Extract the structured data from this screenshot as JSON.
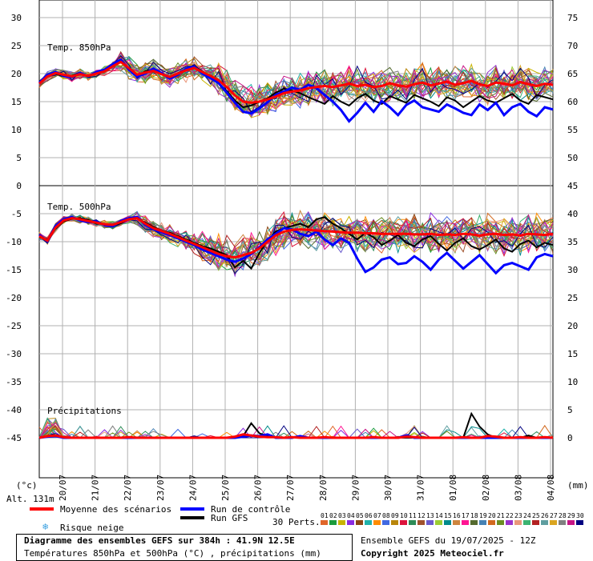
{
  "chart_data": {
    "type": "line",
    "title": "Diagramme des ensembles GEFS sur 384h : 41.9N 12.5E",
    "subtitle": "Températures 850hPa et 500hPa (°C) , précipitations (mm)",
    "x_labels": [
      "20/07",
      "21/07",
      "22/07",
      "23/07",
      "24/07",
      "25/07",
      "26/07",
      "27/07",
      "28/07",
      "29/07",
      "30/07",
      "31/07",
      "01/08",
      "02/08",
      "03/08",
      "04/08"
    ],
    "left_axis_ticks": [
      "30",
      "25",
      "20",
      "15",
      "10",
      "5",
      "0",
      "-5",
      "-10",
      "-15",
      "-20",
      "-25",
      "-30",
      "-35",
      "-40",
      "-45"
    ],
    "right_axis_ticks": [
      "75",
      "70",
      "65",
      "60",
      "55",
      "50",
      "45",
      "40",
      "35",
      "30",
      "25",
      "20",
      "15",
      "10",
      "5",
      "0"
    ],
    "panel_labels": {
      "t850": "Temp. 850hPa",
      "t500": "Temp. 500hPa",
      "precip": "Précipitations"
    },
    "left_unit": "(°c)",
    "right_unit": "(mm)",
    "altitude": "Alt. 131m",
    "x_steps": 64,
    "t850_mean": [
      18.2,
      19.5,
      20.1,
      19.8,
      19.5,
      19.9,
      19.6,
      20.0,
      20.4,
      21.3,
      22.1,
      21.0,
      19.8,
      20.2,
      20.5,
      19.9,
      19.4,
      20.0,
      20.6,
      21.0,
      20.3,
      19.6,
      18.8,
      17.6,
      16.1,
      15.0,
      14.8,
      15.0,
      15.4,
      15.9,
      16.5,
      16.8,
      17.0,
      17.4,
      17.6,
      17.8,
      17.6,
      17.9,
      18.2,
      17.8,
      18.0,
      17.6,
      17.8,
      18.3,
      17.9,
      17.7,
      18.1,
      18.4,
      17.9,
      18.2,
      18.6,
      18.0,
      18.3,
      18.7,
      18.1,
      17.8,
      18.4,
      18.2,
      17.9,
      18.5,
      18.1,
      17.8,
      18.2,
      18.0
    ],
    "t850_control": [
      18.4,
      19.8,
      20.3,
      19.6,
      19.4,
      20.1,
      19.5,
      20.3,
      20.7,
      21.7,
      22.5,
      20.7,
      19.5,
      20.0,
      20.9,
      20.1,
      19.1,
      19.8,
      20.9,
      21.3,
      20.0,
      19.2,
      18.3,
      16.6,
      14.8,
      13.2,
      12.9,
      13.8,
      14.9,
      16.2,
      16.8,
      17.5,
      17.1,
      18.0,
      17.4,
      16.2,
      15.0,
      13.5,
      11.5,
      13.0,
      14.8,
      13.2,
      15.1,
      14.0,
      12.6,
      14.4,
      15.2,
      14.0,
      13.6,
      13.2,
      14.5,
      13.8,
      13.0,
      12.6,
      14.5,
      13.5,
      14.8,
      12.6,
      14.0,
      14.6,
      13.2,
      12.4,
      14.0,
      13.6
    ],
    "t850_gfs": [
      18.6,
      19.6,
      20.0,
      19.5,
      19.6,
      20.2,
      19.4,
      20.2,
      20.5,
      21.6,
      22.3,
      20.8,
      19.6,
      20.4,
      20.8,
      20.0,
      19.3,
      20.1,
      20.8,
      21.5,
      20.2,
      19.5,
      18.2,
      16.9,
      15.2,
      14.0,
      14.3,
      15.0,
      15.6,
      16.6,
      17.3,
      17.0,
      16.5,
      15.8,
      15.2,
      14.6,
      16.0,
      15.0,
      14.3,
      15.6,
      16.4,
      15.2,
      14.6,
      16.0,
      15.4,
      14.8,
      16.2,
      15.6,
      15.0,
      14.2,
      15.8,
      15.2,
      14.0,
      15.0,
      16.0,
      15.2,
      14.8,
      15.6,
      16.4,
      15.2,
      14.6,
      16.2,
      15.8,
      15.4
    ],
    "t500_mean": [
      -9.0,
      -9.8,
      -7.5,
      -6.2,
      -5.8,
      -6.0,
      -6.3,
      -6.6,
      -6.9,
      -7.0,
      -6.5,
      -6.0,
      -5.8,
      -6.8,
      -7.6,
      -8.1,
      -8.6,
      -9.2,
      -9.8,
      -10.4,
      -11.0,
      -11.6,
      -12.2,
      -12.6,
      -12.8,
      -12.4,
      -12.0,
      -11.2,
      -10.0,
      -8.9,
      -8.2,
      -7.9,
      -7.8,
      -7.9,
      -8.0,
      -8.1,
      -8.2,
      -8.3,
      -8.4,
      -8.4,
      -8.5,
      -8.5,
      -8.6,
      -8.6,
      -8.6,
      -8.6,
      -8.7,
      -8.7,
      -8.6,
      -8.8,
      -8.7,
      -8.8,
      -8.6,
      -8.7,
      -8.9,
      -8.7,
      -8.6,
      -8.8,
      -8.7,
      -8.9,
      -8.6,
      -8.7,
      -8.8,
      -8.6
    ],
    "t500_control": [
      -8.8,
      -9.9,
      -7.2,
      -6.0,
      -5.6,
      -6.2,
      -6.5,
      -6.4,
      -7.0,
      -7.2,
      -6.3,
      -5.8,
      -5.6,
      -7.0,
      -7.8,
      -8.3,
      -8.8,
      -9.4,
      -10.0,
      -10.6,
      -11.4,
      -12.0,
      -12.6,
      -13.2,
      -13.6,
      -13.0,
      -12.2,
      -11.0,
      -9.6,
      -8.6,
      -7.6,
      -7.8,
      -8.6,
      -9.0,
      -8.2,
      -9.6,
      -10.6,
      -9.4,
      -10.2,
      -13.0,
      -15.4,
      -14.6,
      -13.2,
      -12.8,
      -14.0,
      -13.8,
      -12.6,
      -13.6,
      -15.0,
      -13.2,
      -12.0,
      -13.4,
      -14.8,
      -13.6,
      -12.4,
      -14.0,
      -15.6,
      -14.2,
      -13.8,
      -14.4,
      -15.0,
      -12.8,
      -12.2,
      -12.6
    ],
    "t500_gfs": [
      -9.2,
      -9.6,
      -7.7,
      -6.4,
      -5.9,
      -5.8,
      -6.1,
      -6.8,
      -6.8,
      -7.1,
      -6.7,
      -5.9,
      -5.9,
      -6.6,
      -7.4,
      -8.0,
      -8.4,
      -9.0,
      -9.6,
      -10.2,
      -10.8,
      -11.2,
      -11.8,
      -12.4,
      -14.6,
      -13.4,
      -14.8,
      -12.0,
      -9.8,
      -8.2,
      -7.6,
      -7.2,
      -6.8,
      -7.4,
      -6.0,
      -5.6,
      -6.8,
      -7.6,
      -8.6,
      -9.6,
      -8.4,
      -9.2,
      -10.6,
      -9.8,
      -8.8,
      -10.2,
      -10.8,
      -9.6,
      -9.0,
      -10.4,
      -11.6,
      -10.2,
      -9.4,
      -10.8,
      -11.4,
      -10.6,
      -9.6,
      -11.2,
      -11.8,
      -10.4,
      -9.8,
      -11.0,
      -10.2,
      -10.6
    ],
    "precip_mean": [
      0,
      0.3,
      0.4,
      0.1,
      0,
      0,
      0,
      0,
      0,
      0,
      0,
      0.1,
      0,
      0,
      0,
      0,
      0,
      0,
      0,
      0,
      0,
      0,
      0,
      0,
      0.2,
      0.6,
      0.4,
      0.2,
      0.1,
      0.1,
      0,
      0.1,
      0,
      0,
      0,
      0.1,
      0,
      0,
      0,
      0,
      0,
      0.1,
      0,
      0,
      0,
      0.2,
      0.1,
      0,
      0,
      0,
      0,
      0,
      0.1,
      0,
      0,
      0.3,
      0.2,
      0,
      0,
      0.1,
      0,
      0,
      0.1,
      0
    ],
    "precip_control": [
      0,
      0.2,
      0.3,
      0,
      0,
      0,
      0,
      0,
      0,
      0,
      0,
      0,
      0,
      0,
      0,
      0,
      0,
      0,
      0,
      0,
      0,
      0,
      0,
      0,
      0,
      0.2,
      0.4,
      0.3,
      0.6,
      0,
      0,
      0,
      0.3,
      0,
      0,
      0,
      0,
      0,
      0,
      0,
      0,
      0,
      0,
      0,
      0,
      0.4,
      0,
      0,
      0,
      0,
      0,
      0,
      0,
      0,
      0,
      0,
      0,
      0,
      0,
      0,
      0,
      0,
      0,
      0
    ],
    "precip_gfs": [
      0,
      0.2,
      0.4,
      0,
      0,
      0,
      0,
      0,
      0,
      0,
      0,
      0,
      0,
      0,
      0,
      0,
      0,
      0,
      0,
      0,
      0,
      0,
      0,
      0,
      0,
      0.3,
      2.6,
      0.8,
      0.3,
      0,
      0,
      0,
      0,
      0,
      0,
      0,
      0,
      0,
      0,
      0,
      0,
      0,
      0,
      0,
      0,
      0,
      0,
      0,
      0,
      0,
      0,
      0,
      0,
      4.3,
      2.0,
      0.6,
      0,
      0,
      0,
      0,
      0.4,
      0,
      0,
      0
    ],
    "members_850_count": 30,
    "member_colors": [
      "#e0662a",
      "#1a9b3c",
      "#c8b400",
      "#8a2be2",
      "#8b4513",
      "#20b2aa",
      "#ff8c00",
      "#4169e1",
      "#b8860b",
      "#dc143c",
      "#2e8b57",
      "#a0522d",
      "#6a5acd",
      "#9acd32",
      "#008b8b",
      "#cd853f",
      "#ff1493",
      "#556b2f",
      "#4682b4",
      "#d2691e",
      "#6b8e23",
      "#9932cc",
      "#e9967a",
      "#3cb371",
      "#b22222",
      "#5f9ea0",
      "#daa520",
      "#808080",
      "#c71585",
      "#000080"
    ]
  },
  "legend": {
    "mean_label": "Moyenne des scénarios",
    "control_label": "Run de contrôle",
    "gfs_label": "Run GFS",
    "snow_label": "Risque neige",
    "perts_label": "30 Perts.",
    "pert_numbers": [
      "01",
      "02",
      "03",
      "04",
      "05",
      "06",
      "07",
      "08",
      "09",
      "10",
      "11",
      "12",
      "13",
      "14",
      "15",
      "16",
      "17",
      "18",
      "19",
      "20",
      "21",
      "22",
      "23",
      "24",
      "25",
      "26",
      "27",
      "28",
      "29",
      "30"
    ],
    "mean_color": "#ff0000",
    "control_color": "#0000ff",
    "gfs_color": "#000000"
  },
  "info": {
    "ensemble": "Ensemble GEFS du 19/07/2025 - 12Z",
    "copyright": "Copyright 2025 Meteociel.fr"
  }
}
